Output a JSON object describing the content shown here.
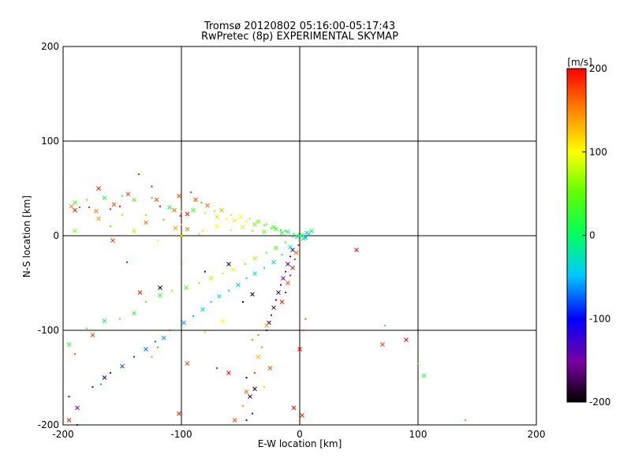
{
  "chart_data": {
    "type": "scatter",
    "title": "Tromsø 20120802 05:16:00-05:17:43",
    "subtitle": "RwPretec (8p) EXPERIMENTAL SKYMAP",
    "xlabel": "E-W location [km]",
    "ylabel": "N-S location [km]",
    "xlim": [
      -200,
      200
    ],
    "ylim": [
      -200,
      200
    ],
    "xticks": [
      -200,
      -100,
      0,
      100,
      200
    ],
    "yticks": [
      -200,
      -100,
      0,
      100,
      200
    ],
    "grid": true,
    "colorbar": {
      "label": "[m/s]",
      "min": -200,
      "max": 200,
      "ticks": [
        200,
        100,
        0,
        -100,
        -200
      ],
      "scale": "black-purple-blue-cyan-green-yellow-red"
    },
    "series": [
      {
        "values": [
          [
            -193,
            31,
            150
          ],
          [
            -186,
            30,
            170
          ],
          [
            -190,
            27,
            190
          ],
          [
            -178,
            30,
            180
          ],
          [
            -172,
            26,
            160
          ],
          [
            -160,
            28,
            190
          ],
          [
            -157,
            33,
            170
          ],
          [
            -152,
            31,
            200
          ],
          [
            -145,
            44,
            180
          ],
          [
            -136,
            65,
            190
          ],
          [
            -121,
            38,
            170
          ],
          [
            -118,
            31,
            200
          ],
          [
            -106,
            27,
            160
          ],
          [
            -101,
            21,
            180
          ],
          [
            -95,
            23,
            190
          ],
          [
            -92,
            46,
            180
          ],
          [
            -88,
            38,
            170
          ],
          [
            -83,
            35,
            150
          ],
          [
            -78,
            32,
            160
          ],
          [
            -72,
            26,
            120
          ],
          [
            -66,
            27,
            130
          ],
          [
            -58,
            22,
            110
          ],
          [
            -50,
            20,
            100
          ],
          [
            -42,
            18,
            80
          ],
          [
            -35,
            15,
            60
          ],
          [
            -28,
            12,
            40
          ],
          [
            -22,
            9,
            30
          ],
          [
            -16,
            6,
            10
          ],
          [
            -10,
            4,
            0
          ],
          [
            -5,
            2,
            -20
          ],
          [
            -190,
            35,
            30
          ],
          [
            -180,
            38,
            40
          ],
          [
            -165,
            40,
            20
          ],
          [
            -150,
            42,
            10
          ],
          [
            -140,
            38,
            40
          ],
          [
            -125,
            40,
            30
          ],
          [
            -110,
            30,
            10
          ],
          [
            -100,
            26,
            60
          ],
          [
            -90,
            27,
            40
          ],
          [
            -80,
            24,
            70
          ],
          [
            -70,
            20,
            80
          ],
          [
            -62,
            18,
            90
          ],
          [
            -55,
            16,
            110
          ],
          [
            -45,
            15,
            90
          ],
          [
            -38,
            12,
            60
          ],
          [
            -30,
            11,
            50
          ],
          [
            -20,
            7,
            40
          ],
          [
            -12,
            5,
            20
          ],
          [
            -170,
            18,
            140
          ],
          [
            -150,
            22,
            130
          ],
          [
            -130,
            14,
            160
          ],
          [
            -115,
            17,
            150
          ],
          [
            -105,
            8,
            140
          ],
          [
            -100,
            12,
            120
          ],
          [
            -95,
            7,
            150
          ],
          [
            -82,
            5,
            110
          ],
          [
            -70,
            10,
            100
          ],
          [
            -58,
            6,
            90
          ],
          [
            -48,
            9,
            80
          ],
          [
            -40,
            5,
            70
          ],
          [
            -30,
            4,
            50
          ],
          [
            -24,
            8,
            40
          ],
          [
            -15,
            3,
            30
          ],
          [
            -3,
            -2,
            10
          ],
          [
            -2,
            -1,
            -10
          ],
          [
            0,
            0,
            5
          ],
          [
            2,
            1,
            20
          ],
          [
            4,
            0,
            -20
          ],
          [
            6,
            3,
            -40
          ],
          [
            8,
            2,
            -30
          ],
          [
            10,
            5,
            0
          ],
          [
            -6,
            -1,
            15
          ],
          [
            3,
            -3,
            -5
          ],
          [
            -1,
            2,
            25
          ],
          [
            5,
            -2,
            -60
          ],
          [
            -175,
            -160,
            -110
          ],
          [
            -165,
            -150,
            -100
          ],
          [
            -160,
            -145,
            -95
          ],
          [
            -150,
            -138,
            -80
          ],
          [
            -140,
            -128,
            -85
          ],
          [
            -130,
            -120,
            -70
          ],
          [
            -122,
            -112,
            -75
          ],
          [
            -115,
            -108,
            -60
          ],
          [
            -105,
            -100,
            -55
          ],
          [
            -98,
            -92,
            -60
          ],
          [
            -90,
            -85,
            -50
          ],
          [
            -82,
            -78,
            -45
          ],
          [
            -75,
            -70,
            -50
          ],
          [
            -68,
            -64,
            -40
          ],
          [
            -60,
            -58,
            -45
          ],
          [
            -52,
            -52,
            -35
          ],
          [
            -45,
            -45,
            -40
          ],
          [
            -38,
            -40,
            -30
          ],
          [
            -30,
            -34,
            -25
          ],
          [
            -22,
            -28,
            -30
          ],
          [
            -15,
            -20,
            -20
          ],
          [
            -8,
            -12,
            -10
          ],
          [
            -195,
            -170,
            -120
          ],
          [
            -188,
            -182,
            -150
          ],
          [
            -168,
            -157,
            -60
          ],
          [
            -195,
            -115,
            20
          ],
          [
            -180,
            -98,
            30
          ],
          [
            -165,
            -90,
            10
          ],
          [
            -152,
            -88,
            40
          ],
          [
            -140,
            -82,
            20
          ],
          [
            -130,
            -70,
            50
          ],
          [
            -118,
            -63,
            30
          ],
          [
            -108,
            -58,
            60
          ],
          [
            -96,
            -55,
            40
          ],
          [
            -85,
            -50,
            60
          ],
          [
            -75,
            -45,
            80
          ],
          [
            -65,
            -40,
            70
          ],
          [
            -56,
            -36,
            90
          ],
          [
            -46,
            -30,
            60
          ],
          [
            -38,
            -24,
            70
          ],
          [
            -28,
            -18,
            50
          ],
          [
            -20,
            -13,
            40
          ],
          [
            -12,
            -7,
            20
          ],
          [
            -118,
            -55,
            -200
          ],
          [
            -80,
            -38,
            -180
          ],
          [
            -60,
            -30,
            -190
          ],
          [
            -48,
            -70,
            -200
          ],
          [
            -40,
            -62,
            -190
          ],
          [
            -28,
            -100,
            -160
          ],
          [
            -26,
            -92,
            -170
          ],
          [
            -24,
            -84,
            -150
          ],
          [
            -22,
            -76,
            -180
          ],
          [
            -20,
            -68,
            -160
          ],
          [
            -18,
            -60,
            -170
          ],
          [
            -16,
            -52,
            -150
          ],
          [
            -14,
            -45,
            -140
          ],
          [
            -12,
            -38,
            -160
          ],
          [
            -10,
            -30,
            -130
          ],
          [
            -8,
            -22,
            -140
          ],
          [
            -6,
            -15,
            -120
          ],
          [
            -40,
            -110,
            150
          ],
          [
            -35,
            -128,
            130
          ],
          [
            -38,
            -145,
            180
          ],
          [
            -45,
            -165,
            160
          ],
          [
            -48,
            -180,
            140
          ],
          [
            -55,
            -195,
            170
          ],
          [
            -30,
            -160,
            120
          ],
          [
            -25,
            -140,
            170
          ],
          [
            -35,
            -105,
            160
          ],
          [
            -28,
            -95,
            140
          ],
          [
            -32,
            -118,
            150
          ],
          [
            -15,
            -70,
            190
          ],
          [
            -12,
            -60,
            200
          ],
          [
            -10,
            -50,
            170
          ],
          [
            -8,
            -42,
            190
          ],
          [
            -6,
            -34,
            200
          ],
          [
            -4,
            -25,
            180
          ],
          [
            -3,
            -18,
            160
          ],
          [
            -1,
            -10,
            190
          ],
          [
            0,
            -120,
            200
          ],
          [
            3,
            -100,
            180
          ],
          [
            2,
            -190,
            190
          ],
          [
            5,
            -88,
            170
          ],
          [
            -5,
            -182,
            200
          ],
          [
            -45,
            -150,
            -200
          ],
          [
            -42,
            -170,
            -180
          ],
          [
            -40,
            -188,
            -160
          ],
          [
            -38,
            -162,
            -190
          ],
          [
            -45,
            -195,
            -170
          ],
          [
            48,
            -15,
            200
          ],
          [
            72,
            -95,
            10
          ],
          [
            90,
            -110,
            200
          ],
          [
            100,
            -135,
            40
          ],
          [
            105,
            -148,
            20
          ],
          [
            140,
            -195,
            20
          ],
          [
            70,
            -115,
            180
          ],
          [
            -190,
            -125,
            160
          ],
          [
            -175,
            -105,
            170
          ],
          [
            -120,
            -118,
            160
          ],
          [
            -95,
            -135,
            170
          ],
          [
            -70,
            -140,
            190
          ],
          [
            -60,
            -145,
            200
          ],
          [
            -110,
            -100,
            180
          ],
          [
            -135,
            -60,
            190
          ],
          [
            -100,
            -30,
            170
          ],
          [
            -65,
            -90,
            100
          ],
          [
            -80,
            -102,
            120
          ],
          [
            -102,
            -188,
            190
          ],
          [
            -125,
            -128,
            150
          ],
          [
            -190,
            5,
            60
          ],
          [
            -160,
            10,
            40
          ],
          [
            -140,
            5,
            80
          ],
          [
            -120,
            -5,
            90
          ],
          [
            -100,
            0,
            100
          ],
          [
            -85,
            2,
            120
          ],
          [
            -170,
            50,
            190
          ],
          [
            -125,
            52,
            200
          ],
          [
            -102,
            42,
            170
          ],
          [
            -130,
            22,
            130
          ],
          [
            -158,
            -5,
            180
          ],
          [
            -146,
            -28,
            200
          ],
          [
            -195,
            -195,
            190
          ],
          [
            -188,
            -200,
            180
          ]
        ]
      }
    ]
  }
}
